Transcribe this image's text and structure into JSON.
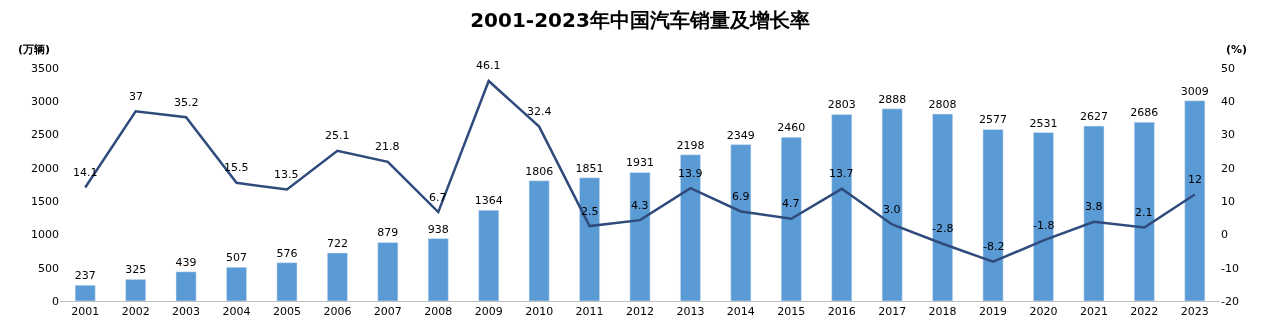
{
  "chart_data": {
    "type": "bar",
    "title": "2001-2023年中国汽车销量及增长率",
    "ylabel": "(万辆)",
    "y2label": "(%)",
    "categories": [
      "2001",
      "2002",
      "2003",
      "2004",
      "2005",
      "2006",
      "2007",
      "2008",
      "2009",
      "2010",
      "2011",
      "2012",
      "2013",
      "2014",
      "2015",
      "2016",
      "2017",
      "2018",
      "2019",
      "2020",
      "2021",
      "2022",
      "2023"
    ],
    "series": [
      {
        "color": "#5b9bd5",
        "values": [
          237,
          325,
          439,
          507,
          576,
          722,
          879,
          938,
          1364,
          1806,
          1851,
          1931,
          2198,
          2349,
          2460,
          2803,
          2888,
          2808,
          2577,
          2531,
          2627,
          2686,
          3009
        ],
        "data_labels": true
      },
      {
        "type": "line",
        "axis": "y2",
        "color": "#2f4b7c",
        "marker": "none",
        "line_style": "solid",
        "values": [
          14.1,
          37,
          35.2,
          15.5,
          13.5,
          25.1,
          21.8,
          6.7,
          46.1,
          32.4,
          2.5,
          4.3,
          13.9,
          6.9,
          4.7,
          13.7,
          3.0,
          -2.8,
          -8.2,
          -1.8,
          3.8,
          2.1,
          12
        ],
        "value_labels": [
          "14.1",
          "37",
          "35.2",
          "15.5",
          "13.5",
          "25.1",
          "21.8",
          "6.7",
          "46.1",
          "32.4",
          "2.5",
          "4.3",
          "13.9",
          "6.9",
          "4.7",
          "13.7",
          "3.0",
          "-2.8",
          "-8.2",
          "-1.8",
          "3.8",
          "2.1",
          "12"
        ]
      }
    ],
    "ylim": [
      0,
      3500
    ],
    "yticks": [
      0,
      500,
      1000,
      1500,
      2000,
      2500,
      3000,
      3500
    ],
    "y2lim": [
      -20,
      50
    ],
    "y2ticks": [
      -20,
      -10,
      0,
      10,
      20,
      30,
      40,
      50
    ]
  }
}
